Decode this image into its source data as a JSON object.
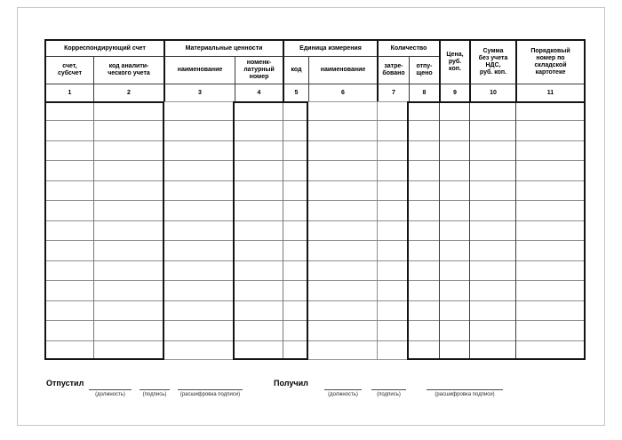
{
  "table": {
    "header": {
      "g_corr": "Корреспондирующий счет",
      "g_mat": "Материальные ценности",
      "g_unit": "Единица измерения",
      "g_qty": "Количество",
      "c_price": "Цена,\nруб.\nкоп.",
      "c_sum": "Сумма\nбез учета\nНДС,\nруб. коп.",
      "c_card": "Порядковый\nномер по\nскладской\nкартотеке",
      "s_account": "счет,\nсубсчет",
      "s_analytic": "код аналити-\nческого учета",
      "s_name": "наименование",
      "s_nomen": "номенк-\nлатурный\nномер",
      "s_code": "код",
      "s_unit_name": "наименование",
      "s_requested": "затре-\nбовано",
      "s_released": "отпу-\nщено"
    },
    "nums": [
      "1",
      "2",
      "3",
      "4",
      "5",
      "6",
      "7",
      "8",
      "9",
      "10",
      "11"
    ],
    "body_row_count": 13
  },
  "footer": {
    "issued_label": "Отпустил",
    "received_label": "Получил",
    "sig_labels": [
      "(должность)",
      "(подпись)",
      "(расшифровка подписи)"
    ]
  }
}
